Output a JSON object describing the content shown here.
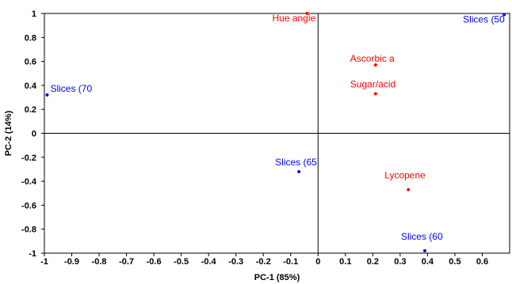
{
  "chart_data": {
    "type": "scatter",
    "xlabel": "PC-1 (85%)",
    "ylabel": "PC-2 (14%)",
    "xlim": [
      -1,
      0.7
    ],
    "ylim": [
      -1,
      1
    ],
    "xticks": [
      "-1",
      "-0.9",
      "-0.8",
      "-0.7",
      "-0.6",
      "-0.5",
      "-0.4",
      "-0.3",
      "-0.2",
      "-0.1",
      "0",
      "0.1",
      "0.2",
      "0.3",
      "0.4",
      "0.5",
      "0.6"
    ],
    "yticks": [
      "1",
      "0.8",
      "0.6",
      "0.4",
      "0.2",
      "0",
      "-0.2",
      "-0.4",
      "-0.6",
      "-0.8",
      "-1"
    ],
    "colors": {
      "samples": "#0000ff",
      "variables": "#ff0000"
    },
    "series": [
      {
        "points": [
          {
            "label": "Slices (50",
            "x": 0.68,
            "y": 0.99
          },
          {
            "label": "Slices (70",
            "x": -0.99,
            "y": 0.32
          },
          {
            "label": "Slices (65",
            "x": -0.07,
            "y": -0.32
          },
          {
            "label": "Slices (60",
            "x": 0.39,
            "y": -0.98
          }
        ]
      },
      {
        "points": [
          {
            "label": "Hue angle",
            "x": -0.04,
            "y": 1.0
          },
          {
            "label": "Ascorbic a",
            "x": 0.21,
            "y": 0.57
          },
          {
            "label": "Sugar/acid",
            "x": 0.21,
            "y": 0.33
          },
          {
            "label": "Lycopene",
            "x": 0.33,
            "y": -0.47
          }
        ]
      }
    ]
  }
}
